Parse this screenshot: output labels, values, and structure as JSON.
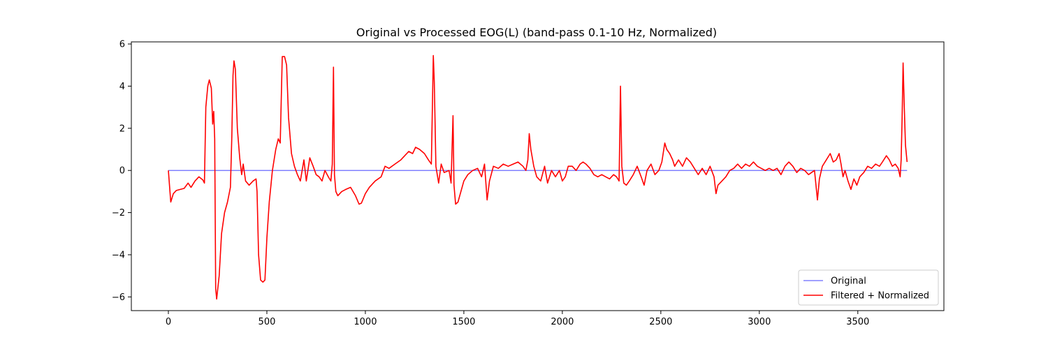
{
  "chart_data": {
    "type": "line",
    "title": "Original vs Processed EOG(L) (band-pass 0.1-10 Hz, Normalized)",
    "xlabel": "",
    "ylabel": "",
    "xlim": [
      -188,
      3937
    ],
    "ylim": [
      -6.65,
      6.1
    ],
    "x_ticks": [
      0,
      500,
      1000,
      1500,
      2000,
      2500,
      3000,
      3500
    ],
    "y_ticks": [
      -6,
      -4,
      -2,
      0,
      2,
      4,
      6
    ],
    "grid": false,
    "legend_position": "lower-right",
    "series": [
      {
        "name": "Original",
        "color": "#8080ff",
        "points": [
          [
            0,
            0
          ],
          [
            3750,
            0
          ]
        ]
      },
      {
        "name": "Filtered + Normalized",
        "color": "#ff0000",
        "points": [
          [
            0,
            0.0
          ],
          [
            12,
            -1.5
          ],
          [
            25,
            -1.1
          ],
          [
            40,
            -0.95
          ],
          [
            60,
            -0.9
          ],
          [
            80,
            -0.85
          ],
          [
            100,
            -0.6
          ],
          [
            115,
            -0.8
          ],
          [
            135,
            -0.5
          ],
          [
            155,
            -0.3
          ],
          [
            175,
            -0.45
          ],
          [
            183,
            -0.6
          ],
          [
            190,
            3.0
          ],
          [
            200,
            4.0
          ],
          [
            208,
            4.3
          ],
          [
            218,
            3.9
          ],
          [
            225,
            2.2
          ],
          [
            230,
            2.8
          ],
          [
            235,
            1.5
          ],
          [
            240,
            -5.6
          ],
          [
            245,
            -6.1
          ],
          [
            258,
            -5.0
          ],
          [
            270,
            -3.0
          ],
          [
            285,
            -2.0
          ],
          [
            300,
            -1.5
          ],
          [
            315,
            -0.8
          ],
          [
            322,
            1.6
          ],
          [
            328,
            4.5
          ],
          [
            333,
            5.2
          ],
          [
            340,
            4.8
          ],
          [
            350,
            2.0
          ],
          [
            362,
            0.6
          ],
          [
            372,
            -0.2
          ],
          [
            380,
            0.3
          ],
          [
            392,
            -0.5
          ],
          [
            410,
            -0.7
          ],
          [
            430,
            -0.5
          ],
          [
            445,
            -0.4
          ],
          [
            450,
            -1.0
          ],
          [
            458,
            -4.0
          ],
          [
            468,
            -5.2
          ],
          [
            480,
            -5.3
          ],
          [
            490,
            -5.2
          ],
          [
            500,
            -3.2
          ],
          [
            512,
            -1.5
          ],
          [
            528,
            0.0
          ],
          [
            545,
            1.0
          ],
          [
            558,
            1.5
          ],
          [
            568,
            1.3
          ],
          [
            578,
            5.4
          ],
          [
            590,
            5.4
          ],
          [
            600,
            5.0
          ],
          [
            610,
            2.5
          ],
          [
            625,
            0.8
          ],
          [
            640,
            0.2
          ],
          [
            655,
            -0.2
          ],
          [
            670,
            -0.5
          ],
          [
            688,
            0.5
          ],
          [
            700,
            -0.5
          ],
          [
            718,
            0.6
          ],
          [
            735,
            0.2
          ],
          [
            750,
            -0.2
          ],
          [
            765,
            -0.3
          ],
          [
            780,
            -0.5
          ],
          [
            795,
            0.0
          ],
          [
            812,
            -0.3
          ],
          [
            825,
            -0.5
          ],
          [
            832,
            0.3
          ],
          [
            838,
            4.9
          ],
          [
            843,
            -0.2
          ],
          [
            850,
            -1.0
          ],
          [
            860,
            -1.2
          ],
          [
            880,
            -1.0
          ],
          [
            900,
            -0.9
          ],
          [
            925,
            -0.8
          ],
          [
            950,
            -1.2
          ],
          [
            968,
            -1.6
          ],
          [
            980,
            -1.55
          ],
          [
            1000,
            -1.1
          ],
          [
            1020,
            -0.8
          ],
          [
            1050,
            -0.5
          ],
          [
            1080,
            -0.3
          ],
          [
            1100,
            0.2
          ],
          [
            1120,
            0.1
          ],
          [
            1150,
            0.3
          ],
          [
            1180,
            0.5
          ],
          [
            1200,
            0.7
          ],
          [
            1220,
            0.9
          ],
          [
            1240,
            0.8
          ],
          [
            1255,
            1.1
          ],
          [
            1275,
            1.0
          ],
          [
            1300,
            0.8
          ],
          [
            1320,
            0.5
          ],
          [
            1335,
            0.3
          ],
          [
            1345,
            5.45
          ],
          [
            1350,
            4.2
          ],
          [
            1358,
            0.2
          ],
          [
            1372,
            -0.6
          ],
          [
            1385,
            0.3
          ],
          [
            1400,
            -0.1
          ],
          [
            1425,
            0.0
          ],
          [
            1435,
            -0.6
          ],
          [
            1445,
            2.6
          ],
          [
            1450,
            -0.7
          ],
          [
            1458,
            -1.6
          ],
          [
            1470,
            -1.5
          ],
          [
            1485,
            -1.0
          ],
          [
            1500,
            -0.5
          ],
          [
            1520,
            -0.2
          ],
          [
            1545,
            0.0
          ],
          [
            1570,
            0.1
          ],
          [
            1590,
            -0.3
          ],
          [
            1605,
            0.3
          ],
          [
            1618,
            -1.4
          ],
          [
            1630,
            -0.5
          ],
          [
            1650,
            0.2
          ],
          [
            1675,
            0.1
          ],
          [
            1700,
            0.3
          ],
          [
            1725,
            0.2
          ],
          [
            1750,
            0.3
          ],
          [
            1775,
            0.4
          ],
          [
            1800,
            0.2
          ],
          [
            1815,
            0.0
          ],
          [
            1825,
            0.5
          ],
          [
            1832,
            1.75
          ],
          [
            1840,
            1.0
          ],
          [
            1855,
            0.2
          ],
          [
            1870,
            -0.3
          ],
          [
            1890,
            -0.5
          ],
          [
            1910,
            0.2
          ],
          [
            1925,
            -0.6
          ],
          [
            1945,
            0.0
          ],
          [
            1965,
            -0.3
          ],
          [
            1985,
            0.0
          ],
          [
            2000,
            -0.5
          ],
          [
            2015,
            -0.3
          ],
          [
            2030,
            0.2
          ],
          [
            2050,
            0.2
          ],
          [
            2070,
            0.0
          ],
          [
            2090,
            0.3
          ],
          [
            2105,
            0.4
          ],
          [
            2120,
            0.3
          ],
          [
            2140,
            0.1
          ],
          [
            2160,
            -0.2
          ],
          [
            2180,
            -0.3
          ],
          [
            2200,
            -0.2
          ],
          [
            2220,
            -0.3
          ],
          [
            2240,
            -0.4
          ],
          [
            2260,
            -0.2
          ],
          [
            2275,
            -0.3
          ],
          [
            2288,
            -0.5
          ],
          [
            2295,
            4.0
          ],
          [
            2302,
            0.2
          ],
          [
            2312,
            -0.6
          ],
          [
            2325,
            -0.7
          ],
          [
            2340,
            -0.5
          ],
          [
            2360,
            -0.2
          ],
          [
            2380,
            0.2
          ],
          [
            2400,
            -0.3
          ],
          [
            2415,
            -0.7
          ],
          [
            2430,
            0.0
          ],
          [
            2450,
            0.3
          ],
          [
            2470,
            -0.2
          ],
          [
            2490,
            0.0
          ],
          [
            2505,
            0.4
          ],
          [
            2520,
            1.3
          ],
          [
            2530,
            1.0
          ],
          [
            2545,
            0.8
          ],
          [
            2560,
            0.5
          ],
          [
            2570,
            0.2
          ],
          [
            2590,
            0.5
          ],
          [
            2610,
            0.2
          ],
          [
            2630,
            0.6
          ],
          [
            2650,
            0.4
          ],
          [
            2670,
            0.1
          ],
          [
            2690,
            -0.2
          ],
          [
            2710,
            0.1
          ],
          [
            2730,
            -0.2
          ],
          [
            2750,
            0.2
          ],
          [
            2770,
            -0.3
          ],
          [
            2780,
            -1.1
          ],
          [
            2790,
            -0.7
          ],
          [
            2810,
            -0.5
          ],
          [
            2830,
            -0.3
          ],
          [
            2850,
            0.0
          ],
          [
            2870,
            0.1
          ],
          [
            2890,
            0.3
          ],
          [
            2910,
            0.1
          ],
          [
            2930,
            0.3
          ],
          [
            2950,
            0.2
          ],
          [
            2970,
            0.4
          ],
          [
            2990,
            0.2
          ],
          [
            3010,
            0.1
          ],
          [
            3030,
            0.0
          ],
          [
            3050,
            0.1
          ],
          [
            3070,
            0.0
          ],
          [
            3090,
            0.1
          ],
          [
            3110,
            -0.2
          ],
          [
            3130,
            0.2
          ],
          [
            3150,
            0.4
          ],
          [
            3170,
            0.2
          ],
          [
            3190,
            -0.1
          ],
          [
            3210,
            0.1
          ],
          [
            3230,
            0.0
          ],
          [
            3250,
            -0.2
          ],
          [
            3265,
            -0.1
          ],
          [
            3280,
            0.0
          ],
          [
            3295,
            -1.4
          ],
          [
            3305,
            -0.4
          ],
          [
            3320,
            0.2
          ],
          [
            3340,
            0.5
          ],
          [
            3360,
            0.8
          ],
          [
            3375,
            0.4
          ],
          [
            3390,
            0.5
          ],
          [
            3405,
            0.8
          ],
          [
            3415,
            0.3
          ],
          [
            3425,
            -0.3
          ],
          [
            3435,
            0.0
          ],
          [
            3450,
            -0.5
          ],
          [
            3465,
            -0.9
          ],
          [
            3480,
            -0.4
          ],
          [
            3495,
            -0.7
          ],
          [
            3510,
            -0.3
          ],
          [
            3530,
            -0.1
          ],
          [
            3550,
            0.2
          ],
          [
            3570,
            0.1
          ],
          [
            3590,
            0.3
          ],
          [
            3610,
            0.2
          ],
          [
            3625,
            0.4
          ],
          [
            3645,
            0.7
          ],
          [
            3660,
            0.5
          ],
          [
            3675,
            0.2
          ],
          [
            3690,
            0.3
          ],
          [
            3705,
            0.1
          ],
          [
            3715,
            -0.3
          ],
          [
            3720,
            0.5
          ],
          [
            3725,
            2.5
          ],
          [
            3730,
            5.1
          ],
          [
            3736,
            3.0
          ],
          [
            3742,
            1.2
          ],
          [
            3750,
            0.4
          ]
        ]
      }
    ]
  }
}
